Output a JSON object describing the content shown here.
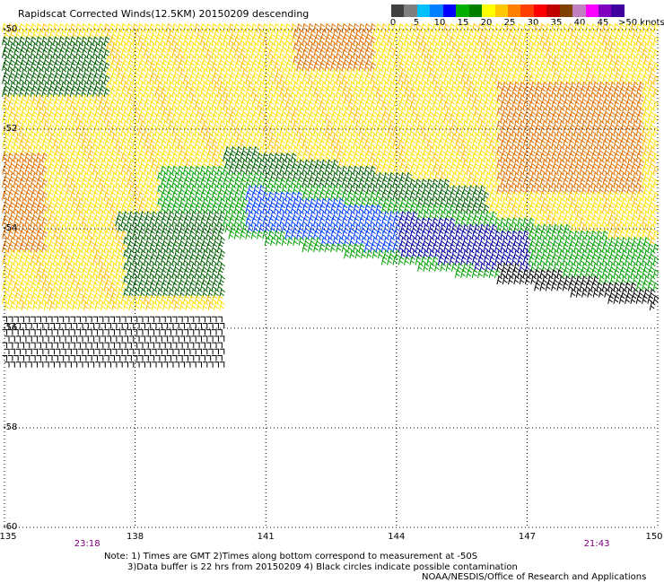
{
  "title": "Rapidscat Corrected Winds(12.5KM) 20150209 descending",
  "colorbar": {
    "colors": [
      "#404040",
      "#7f7f7f",
      "#00bfff",
      "#0080ff",
      "#0000ff",
      "#00b000",
      "#008000",
      "#ffff00",
      "#ffc800",
      "#ff8000",
      "#ff4000",
      "#ff0000",
      "#c00000",
      "#804000",
      "#c080c0",
      "#ff00ff",
      "#8000c0",
      "#4000a0"
    ],
    "labels": [
      "0",
      "5",
      "10",
      "15",
      "20",
      "25",
      "30",
      "35",
      "40",
      "45"
    ],
    "end_label": ">50 knots"
  },
  "axes": {
    "lat_ticks": [
      "-50",
      "-52",
      "-54",
      "-56",
      "-58",
      "-60"
    ],
    "lon_ticks": [
      "135",
      "138",
      "141",
      "144",
      "147",
      "150"
    ]
  },
  "times": [
    "23:18",
    "21:43"
  ],
  "notes": {
    "line1": "Note: 1) Times are GMT 2)Times along bottom correspond to measurement at -50S",
    "line2": "3)Data buffer is 22 hrs from 20150209 4) Black circles indicate possible contamination",
    "credit": "NOAA/NESDIS/Office of Research and Applications"
  },
  "wind_colors": {
    "calm": "#000000",
    "blue": "#0040ff",
    "navy": "#0000a0",
    "green": "#00a000",
    "darkgreen": "#006000",
    "yellow": "#ffe000",
    "gold": "#ffc000",
    "orange": "#e07000"
  }
}
